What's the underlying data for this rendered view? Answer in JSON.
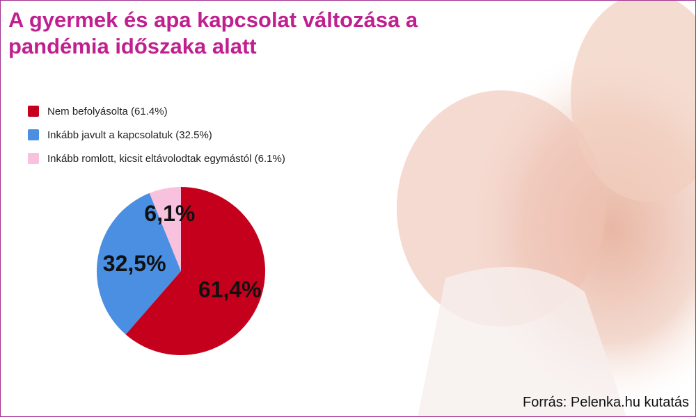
{
  "chart_data": {
    "type": "pie",
    "title": "A gyermek és apa kapcsolat változása a pandémia időszaka alatt",
    "categories": [
      "Nem befolyásolta (61.4%)",
      "Inkább javult a kapcsolatuk (32.5%)",
      "Inkább romlott, kicsit eltávolodtak egymástól (6.1%)"
    ],
    "values": [
      61.4,
      32.5,
      6.1
    ],
    "value_labels": [
      "61,4%",
      "32,5%",
      "6,1%"
    ],
    "colors": [
      "#c5001c",
      "#4a8fe1",
      "#f8c1de"
    ],
    "source": "Forrás: Pelenka.hu kutatás"
  }
}
